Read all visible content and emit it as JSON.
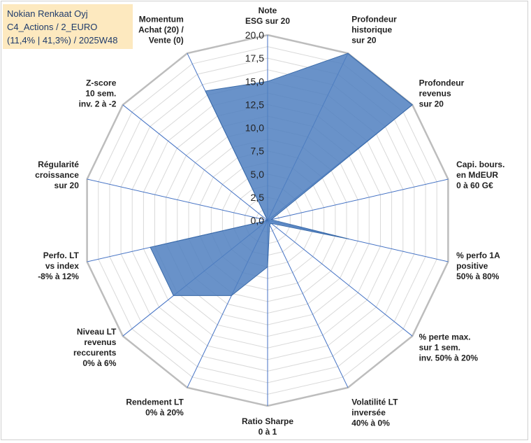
{
  "title_lines": [
    "Nokian Renkaat Oyj",
    "C4_Actions / 2_EURO",
    "(11,4% | 41,3%) / 2025W48"
  ],
  "chart_data": {
    "type": "radar",
    "title": "Nokian Renkaat Oyj",
    "subtitle": "C4_Actions / 2_EURO (11,4% | 41,3%) / 2025W48",
    "rmax": 20,
    "ticks": [
      "0,0",
      "2,5",
      "5,0",
      "7,5",
      "10,0",
      "12,5",
      "15,0",
      "17,5",
      "20,0"
    ],
    "tick_values": [
      0,
      2.5,
      5,
      7.5,
      10,
      12.5,
      15,
      17.5,
      20
    ],
    "grid_step": 1.25,
    "categories": [
      [
        "Note",
        "ESG sur 20"
      ],
      [
        "Profondeur",
        "historique",
        "sur 20"
      ],
      [
        "Profondeur",
        "revenus",
        "sur 20"
      ],
      [
        "Capi. bours.",
        "en MdEUR",
        "0 à 60 G€"
      ],
      [
        "% perfo 1A",
        "positive",
        "50% à 80%"
      ],
      [
        "% perte max.",
        "sur 1 sem.",
        "inv. 50% à 20%"
      ],
      [
        "Volatilité LT",
        "inversée",
        "40% à 0%"
      ],
      [
        "Ratio Sharpe",
        "0 à 1"
      ],
      [
        "Rendement LT",
        "0% à 20%"
      ],
      [
        "Niveau LT",
        "revenus",
        "reccurents",
        "0% à 6%"
      ],
      [
        "Perfo. LT",
        "vs index",
        "-8% à 12%"
      ],
      [
        "Régularité",
        "croissance",
        "sur 20"
      ],
      [
        "Z-score",
        "10 sem.",
        "inv. 2 à -2"
      ],
      [
        "Momentum",
        "Achat (20) /",
        "Vente (0)"
      ]
    ],
    "series": [
      {
        "name": "Nokian Renkaat Oyj",
        "values": [
          15.0,
          20.0,
          20.0,
          0.4,
          9.0,
          0.5,
          0.5,
          5.0,
          9.0,
          13.0,
          13.0,
          0.0,
          0.0,
          15.5
        ],
        "color": "#4f7fbf"
      }
    ]
  }
}
